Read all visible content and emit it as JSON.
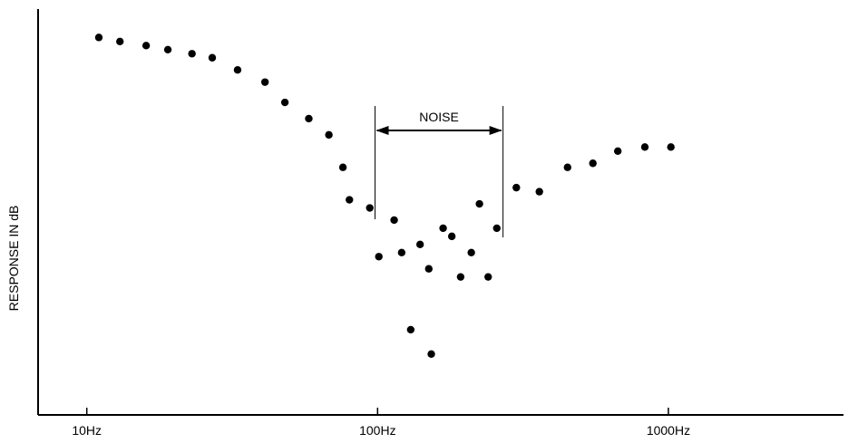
{
  "chart_data": {
    "type": "scatter",
    "title": "",
    "xlabel": "",
    "ylabel": "RESPONSE IN dB",
    "x_scale": "log",
    "xlim": [
      6.8,
      4000
    ],
    "ylim": [
      0,
      1
    ],
    "y_ticks_labeled": false,
    "grid": false,
    "x_tick_labels": [
      {
        "value": 10,
        "label": "10Hz"
      },
      {
        "value": 100,
        "label": "100Hz"
      },
      {
        "value": 1000,
        "label": "1000Hz"
      }
    ],
    "series": [
      {
        "points": [
          {
            "x": 11,
            "y": 0.93
          },
          {
            "x": 13,
            "y": 0.92
          },
          {
            "x": 16,
            "y": 0.91
          },
          {
            "x": 19,
            "y": 0.9
          },
          {
            "x": 23,
            "y": 0.89
          },
          {
            "x": 27,
            "y": 0.88
          },
          {
            "x": 33,
            "y": 0.85
          },
          {
            "x": 41,
            "y": 0.82
          },
          {
            "x": 48,
            "y": 0.77
          },
          {
            "x": 58,
            "y": 0.73
          },
          {
            "x": 68,
            "y": 0.69
          },
          {
            "x": 76,
            "y": 0.61
          },
          {
            "x": 80,
            "y": 0.53
          },
          {
            "x": 94,
            "y": 0.51
          },
          {
            "x": 101,
            "y": 0.39
          },
          {
            "x": 114,
            "y": 0.48
          },
          {
            "x": 121,
            "y": 0.4
          },
          {
            "x": 130,
            "y": 0.21
          },
          {
            "x": 140,
            "y": 0.42
          },
          {
            "x": 150,
            "y": 0.36
          },
          {
            "x": 153,
            "y": 0.15
          },
          {
            "x": 168,
            "y": 0.46
          },
          {
            "x": 180,
            "y": 0.44
          },
          {
            "x": 193,
            "y": 0.34
          },
          {
            "x": 210,
            "y": 0.4
          },
          {
            "x": 224,
            "y": 0.52
          },
          {
            "x": 240,
            "y": 0.34
          },
          {
            "x": 257,
            "y": 0.46
          },
          {
            "x": 300,
            "y": 0.56
          },
          {
            "x": 360,
            "y": 0.55
          },
          {
            "x": 450,
            "y": 0.61
          },
          {
            "x": 550,
            "y": 0.62
          },
          {
            "x": 670,
            "y": 0.65
          },
          {
            "x": 830,
            "y": 0.66
          },
          {
            "x": 1020,
            "y": 0.66
          }
        ]
      }
    ],
    "annotations": [
      {
        "type": "span",
        "label": "NOISE",
        "x_start": 98,
        "x_end": 270
      }
    ]
  }
}
